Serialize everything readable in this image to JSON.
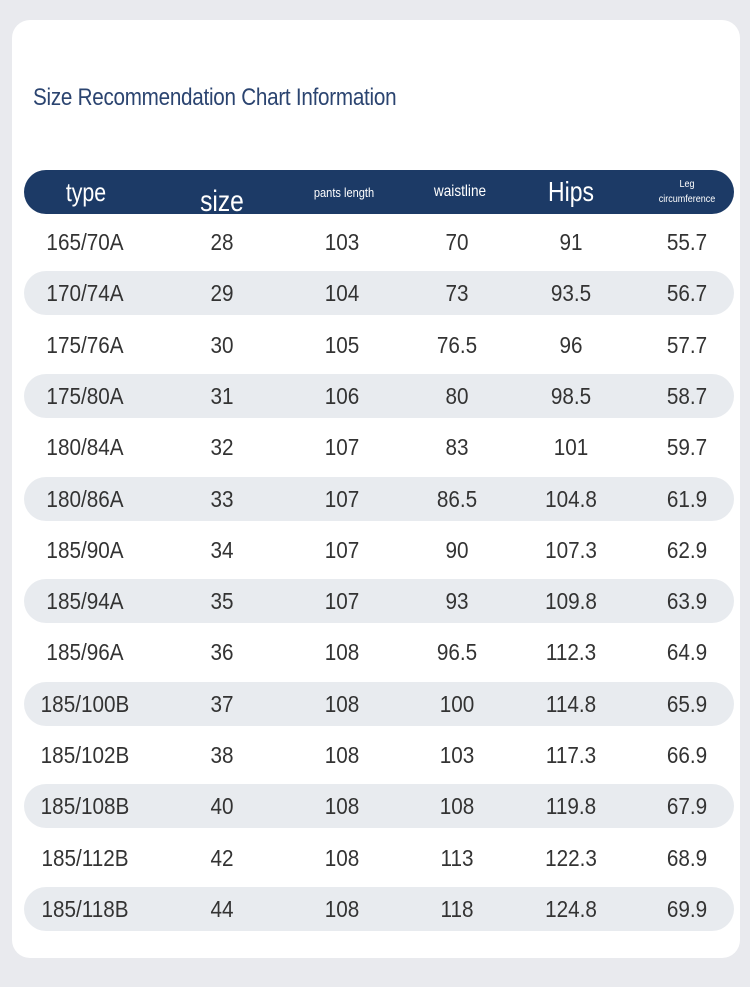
{
  "title": "Size Recommendation Chart Information",
  "columns": {
    "type": "type",
    "size": "size",
    "pants_length": "pants length",
    "waistline": "waistline",
    "hips": "Hips",
    "leg_line1": "Leg",
    "leg_line2": "circumference"
  },
  "rows": [
    [
      "165/70A",
      "28",
      "103",
      "70",
      "91",
      "55.7"
    ],
    [
      "170/74A",
      "29",
      "104",
      "73",
      "93.5",
      "56.7"
    ],
    [
      "175/76A",
      "30",
      "105",
      "76.5",
      "96",
      "57.7"
    ],
    [
      "175/80A",
      "31",
      "106",
      "80",
      "98.5",
      "58.7"
    ],
    [
      "180/84A",
      "32",
      "107",
      "83",
      "101",
      "59.7"
    ],
    [
      "180/86A",
      "33",
      "107",
      "86.5",
      "104.8",
      "61.9"
    ],
    [
      "185/90A",
      "34",
      "107",
      "90",
      "107.3",
      "62.9"
    ],
    [
      "185/94A",
      "35",
      "107",
      "93",
      "109.8",
      "63.9"
    ],
    [
      "185/96A",
      "36",
      "108",
      "96.5",
      "112.3",
      "64.9"
    ],
    [
      "185/100B",
      "37",
      "108",
      "100",
      "114.8",
      "65.9"
    ],
    [
      "185/102B",
      "38",
      "108",
      "103",
      "117.3",
      "66.9"
    ],
    [
      "185/108B",
      "40",
      "108",
      "108",
      "119.8",
      "67.9"
    ],
    [
      "185/112B",
      "42",
      "108",
      "113",
      "122.3",
      "68.9"
    ],
    [
      "185/118B",
      "44",
      "108",
      "118",
      "124.8",
      "69.9"
    ]
  ],
  "colors": {
    "header_bg": "#1c3a66",
    "title": "#2b4470",
    "stripe": "#e8ebef"
  }
}
